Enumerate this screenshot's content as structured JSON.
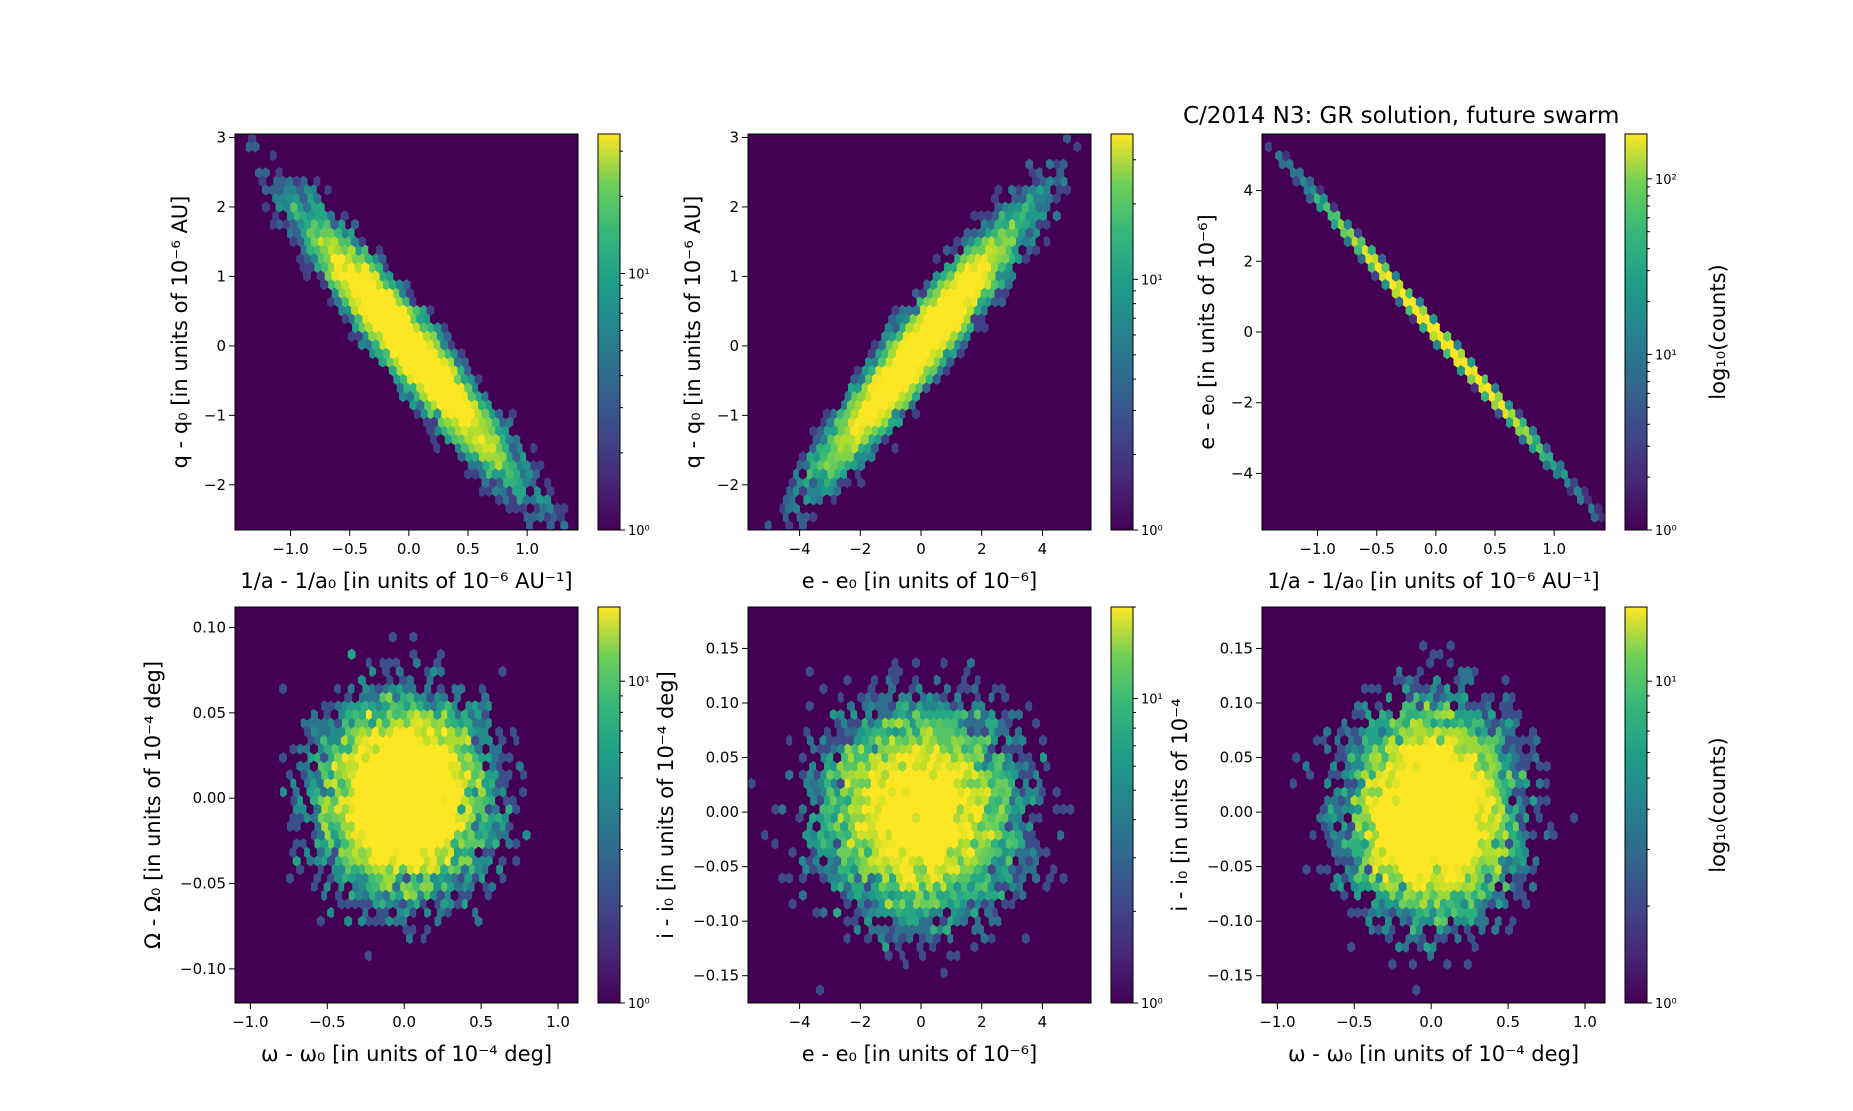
{
  "figure": {
    "title": "C/2014 N3:  GR solution, future swarm",
    "background_color": "#440154",
    "colormap": "viridis"
  },
  "chart_data": [
    {
      "type": "heatmap",
      "subtype": "hexbin",
      "xlabel": "1/a - 1/a₀ [in units of 10⁻⁶ AU⁻¹]",
      "ylabel": "q - q₀ [in units of 10⁻⁶ AU]",
      "xlim": [
        -1.47,
        1.43
      ],
      "ylim": [
        -2.65,
        3.05
      ],
      "xticks": [
        -1.0,
        -0.5,
        0.0,
        0.5,
        1.0
      ],
      "xtick_labels": [
        "−1.0",
        "−0.5",
        "0.0",
        "0.5",
        "1.0"
      ],
      "yticks": [
        -2,
        -1,
        0,
        1,
        2,
        3
      ],
      "ytick_labels": [
        "−2",
        "−1",
        "0",
        "1",
        "2",
        "3"
      ],
      "distribution": {
        "x_mean": 0,
        "x_sd": 0.45,
        "y_mean": 0,
        "y_sd": 0.95,
        "correlation": -0.95,
        "count": 9000
      },
      "colorbar": {
        "scale": "log",
        "min": 1,
        "max": 35,
        "tick_labels": [
          "10⁰",
          "10¹"
        ],
        "ticks": [
          1,
          10
        ],
        "label": ""
      }
    },
    {
      "type": "heatmap",
      "subtype": "hexbin",
      "xlabel": "e - e₀ [in units of 10⁻⁶]",
      "ylabel": "q - q₀ [in units of 10⁻⁶ AU]",
      "xlim": [
        -5.7,
        5.6
      ],
      "ylim": [
        -2.65,
        3.05
      ],
      "xticks": [
        -4,
        -2,
        0,
        2,
        4
      ],
      "xtick_labels": [
        "−4",
        "−2",
        "0",
        "2",
        "4"
      ],
      "yticks": [
        -2,
        -1,
        0,
        1,
        2,
        3
      ],
      "ytick_labels": [
        "−2",
        "−1",
        "0",
        "1",
        "2",
        "3"
      ],
      "distribution": {
        "x_mean": 0,
        "x_sd": 1.7,
        "y_mean": 0,
        "y_sd": 0.95,
        "correlation": 0.95,
        "count": 9000
      },
      "colorbar": {
        "scale": "log",
        "min": 1,
        "max": 38,
        "tick_labels": [
          "10⁰",
          "10¹"
        ],
        "ticks": [
          1,
          10
        ],
        "label": ""
      }
    },
    {
      "type": "heatmap",
      "subtype": "hexbin",
      "title": "C/2014 N3:  GR solution, future swarm",
      "xlabel": "1/a - 1/a₀ [in units of 10⁻⁶ AU⁻¹]",
      "ylabel": "e - e₀ [in units of 10⁻⁶]",
      "xlim": [
        -1.47,
        1.43
      ],
      "ylim": [
        -5.6,
        5.6
      ],
      "xticks": [
        -1.0,
        -0.5,
        0.0,
        0.5,
        1.0
      ],
      "xtick_labels": [
        "−1.0",
        "−0.5",
        "0.0",
        "0.5",
        "1.0"
      ],
      "yticks": [
        -4,
        -2,
        0,
        2,
        4
      ],
      "ytick_labels": [
        "−4",
        "−2",
        "0",
        "2",
        "4"
      ],
      "distribution": {
        "x_mean": 0,
        "x_sd": 0.45,
        "y_mean": 0,
        "y_sd": 1.7,
        "correlation": -0.999,
        "count": 9000
      },
      "colorbar": {
        "scale": "log",
        "min": 1,
        "max": 180,
        "tick_labels": [
          "10⁰",
          "10¹",
          "10²"
        ],
        "ticks": [
          1,
          10,
          100
        ],
        "label": "log₁₀(counts)"
      }
    },
    {
      "type": "heatmap",
      "subtype": "hexbin",
      "xlabel": "ω - ω₀ [in units of 10⁻⁴ deg]",
      "ylabel": "Ω - Ω₀ [in units of 10⁻⁴ deg]",
      "xlim": [
        -1.1,
        1.13
      ],
      "ylim": [
        -0.12,
        0.112
      ],
      "xticks": [
        -1.0,
        -0.5,
        0.0,
        0.5,
        1.0
      ],
      "xtick_labels": [
        "−1.0",
        "−0.5",
        "0.0",
        "0.5",
        "1.0"
      ],
      "yticks": [
        -0.1,
        -0.05,
        0.0,
        0.05,
        0.1
      ],
      "ytick_labels": [
        "−0.10",
        "−0.05",
        "0.00",
        "0.05",
        "0.10"
      ],
      "distribution": {
        "x_mean": 0,
        "x_sd": 0.28,
        "y_mean": 0,
        "y_sd": 0.03,
        "correlation": 0,
        "count": 9000
      },
      "colorbar": {
        "scale": "log",
        "min": 1,
        "max": 17,
        "tick_labels": [
          "10⁰",
          "10¹"
        ],
        "ticks": [
          1,
          10
        ],
        "label": ""
      }
    },
    {
      "type": "heatmap",
      "subtype": "hexbin",
      "xlabel": "e - e₀ [in units of 10⁻⁶]",
      "ylabel": "i - i₀ [in units of 10⁻⁴ deg]",
      "xlim": [
        -5.7,
        5.6
      ],
      "ylim": [
        -0.175,
        0.188
      ],
      "xticks": [
        -4,
        -2,
        0,
        2,
        4
      ],
      "xtick_labels": [
        "−4",
        "−2",
        "0",
        "2",
        "4"
      ],
      "yticks": [
        -0.15,
        -0.1,
        -0.05,
        0.0,
        0.05,
        0.1,
        0.15
      ],
      "ytick_labels": [
        "−0.15",
        "−0.10",
        "−0.05",
        "0.00",
        "0.05",
        "0.10",
        "0.15"
      ],
      "distribution": {
        "x_mean": 0,
        "x_sd": 1.7,
        "y_mean": 0,
        "y_sd": 0.05,
        "correlation": 0,
        "count": 9000
      },
      "colorbar": {
        "scale": "log",
        "min": 1,
        "max": 20,
        "tick_labels": [
          "10⁰",
          "10¹"
        ],
        "ticks": [
          1,
          10
        ],
        "label": ""
      }
    },
    {
      "type": "heatmap",
      "subtype": "hexbin",
      "xlabel": "ω - ω₀ [in units of 10⁻⁴ deg]",
      "ylabel": "i - i₀ [in units of 10⁻⁴",
      "xlim": [
        -1.1,
        1.13
      ],
      "ylim": [
        -0.175,
        0.188
      ],
      "xticks": [
        -1.0,
        -0.5,
        0.0,
        0.5,
        1.0
      ],
      "xtick_labels": [
        "−1.0",
        "−0.5",
        "0.0",
        "0.5",
        "1.0"
      ],
      "yticks": [
        -0.15,
        -0.1,
        -0.05,
        0.0,
        0.05,
        0.1,
        0.15
      ],
      "ytick_labels": [
        "−0.15",
        "−0.10",
        "−0.05",
        "0.00",
        "0.05",
        "0.10",
        "0.15"
      ],
      "distribution": {
        "x_mean": 0,
        "x_sd": 0.28,
        "y_mean": 0,
        "y_sd": 0.05,
        "correlation": 0,
        "count": 9000
      },
      "colorbar": {
        "scale": "log",
        "min": 1,
        "max": 17,
        "tick_labels": [
          "10⁰",
          "10¹"
        ],
        "ticks": [
          1,
          10
        ],
        "label": "log₁₀(counts)"
      }
    }
  ]
}
